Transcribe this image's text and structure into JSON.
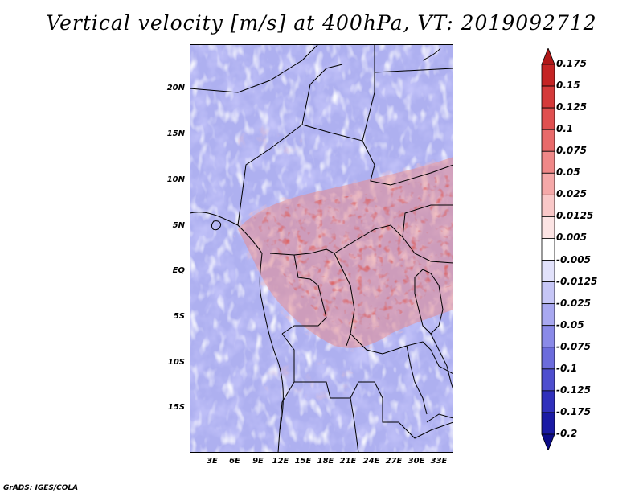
{
  "title": "Vertical velocity [m/s] at 400hPa, VT: 2019092712",
  "credit": "GrADS: IGES/COLA",
  "lat_labels": [
    "20N",
    "15N",
    "10N",
    "5N",
    "EQ",
    "5S",
    "10S",
    "15S"
  ],
  "lon_labels": [
    "3E",
    "6E",
    "9E",
    "12E",
    "15E",
    "18E",
    "21E",
    "24E",
    "27E",
    "30E",
    "33E"
  ],
  "colorbar": {
    "labels": [
      "0.175",
      "0.15",
      "0.125",
      "0.1",
      "0.075",
      "0.05",
      "0.025",
      "0.0125",
      "0.005",
      "-0.005",
      "-0.0125",
      "-0.025",
      "-0.05",
      "-0.075",
      "-0.1",
      "-0.125",
      "-0.175",
      "-0.2"
    ],
    "colors": [
      "#b01818",
      "#c42424",
      "#d43a3a",
      "#e05050",
      "#e86a6a",
      "#ef8888",
      "#f5a8a8",
      "#f9c8c8",
      "#fce4e4",
      "#ffffff",
      "#e2e2fb",
      "#c6c6f6",
      "#a8a8f0",
      "#8a8ae8",
      "#6c6cdc",
      "#4e4ece",
      "#3030bc",
      "#1a1aa4",
      "#0c0c88"
    ]
  }
}
